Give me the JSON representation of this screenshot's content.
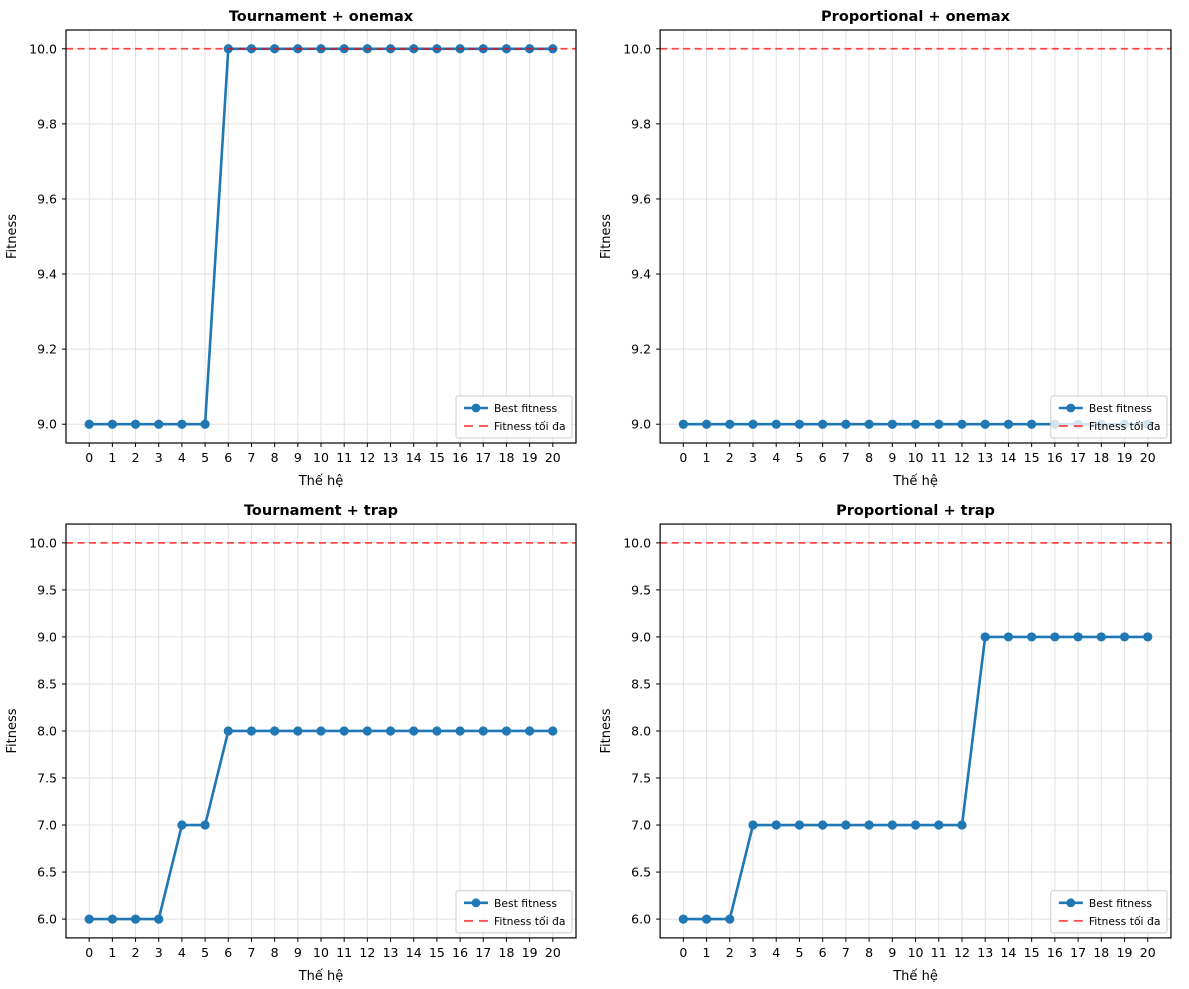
{
  "figure": {
    "background": "#ffffff"
  },
  "colors": {
    "best_fitness_line": "#1f77b4",
    "max_fitness_line_base": "#ff0000",
    "max_fitness_line_opacity": 0.7,
    "grid": "#e2e2e2",
    "spine": "#000000",
    "legend_border": "#cccccc",
    "text": "#000000"
  },
  "chart_data": [
    {
      "type": "line",
      "title": "Tournament + onemax",
      "xlabel": "Thế hệ",
      "ylabel": "Fitness",
      "x": [
        0,
        1,
        2,
        3,
        4,
        5,
        6,
        7,
        8,
        9,
        10,
        11,
        12,
        13,
        14,
        15,
        16,
        17,
        18,
        19,
        20
      ],
      "series": [
        {
          "name": "Best fitness",
          "values": [
            9,
            9,
            9,
            9,
            9,
            9,
            10,
            10,
            10,
            10,
            10,
            10,
            10,
            10,
            10,
            10,
            10,
            10,
            10,
            10,
            10
          ]
        }
      ],
      "max_line": {
        "label": "Fitness tối đa",
        "value": 10.0
      },
      "xlim": [
        -1,
        21
      ],
      "ylim": [
        8.95,
        10.05
      ],
      "xticks": [
        0,
        1,
        2,
        3,
        4,
        5,
        6,
        7,
        8,
        9,
        10,
        11,
        12,
        13,
        14,
        15,
        16,
        17,
        18,
        19,
        20
      ],
      "yticks": [
        9.0,
        9.2,
        9.4,
        9.6,
        9.8,
        10.0
      ],
      "grid": true,
      "legend_position": "lower right"
    },
    {
      "type": "line",
      "title": "Proportional + onemax",
      "xlabel": "Thế hệ",
      "ylabel": "Fitness",
      "x": [
        0,
        1,
        2,
        3,
        4,
        5,
        6,
        7,
        8,
        9,
        10,
        11,
        12,
        13,
        14,
        15,
        16,
        17,
        18,
        19,
        20
      ],
      "series": [
        {
          "name": "Best fitness",
          "values": [
            9,
            9,
            9,
            9,
            9,
            9,
            9,
            9,
            9,
            9,
            9,
            9,
            9,
            9,
            9,
            9,
            9,
            9,
            9,
            9,
            9
          ]
        }
      ],
      "max_line": {
        "label": "Fitness tối đa",
        "value": 10.0
      },
      "xlim": [
        -1,
        21
      ],
      "ylim": [
        8.95,
        10.05
      ],
      "xticks": [
        0,
        1,
        2,
        3,
        4,
        5,
        6,
        7,
        8,
        9,
        10,
        11,
        12,
        13,
        14,
        15,
        16,
        17,
        18,
        19,
        20
      ],
      "yticks": [
        9.0,
        9.2,
        9.4,
        9.6,
        9.8,
        10.0
      ],
      "grid": true,
      "legend_position": "lower right"
    },
    {
      "type": "line",
      "title": "Tournament + trap",
      "xlabel": "Thế hệ",
      "ylabel": "Fitness",
      "x": [
        0,
        1,
        2,
        3,
        4,
        5,
        6,
        7,
        8,
        9,
        10,
        11,
        12,
        13,
        14,
        15,
        16,
        17,
        18,
        19,
        20
      ],
      "series": [
        {
          "name": "Best fitness",
          "values": [
            6,
            6,
            6,
            6,
            7,
            7,
            8,
            8,
            8,
            8,
            8,
            8,
            8,
            8,
            8,
            8,
            8,
            8,
            8,
            8,
            8
          ]
        }
      ],
      "max_line": {
        "label": "Fitness tối đa",
        "value": 10.0
      },
      "xlim": [
        -1,
        21
      ],
      "ylim": [
        5.8,
        10.2
      ],
      "xticks": [
        0,
        1,
        2,
        3,
        4,
        5,
        6,
        7,
        8,
        9,
        10,
        11,
        12,
        13,
        14,
        15,
        16,
        17,
        18,
        19,
        20
      ],
      "yticks": [
        6.0,
        6.5,
        7.0,
        7.5,
        8.0,
        8.5,
        9.0,
        9.5,
        10.0
      ],
      "grid": true,
      "legend_position": "lower right"
    },
    {
      "type": "line",
      "title": "Proportional + trap",
      "xlabel": "Thế hệ",
      "ylabel": "Fitness",
      "x": [
        0,
        1,
        2,
        3,
        4,
        5,
        6,
        7,
        8,
        9,
        10,
        11,
        12,
        13,
        14,
        15,
        16,
        17,
        18,
        19,
        20
      ],
      "series": [
        {
          "name": "Best fitness",
          "values": [
            6,
            6,
            6,
            7,
            7,
            7,
            7,
            7,
            7,
            7,
            7,
            7,
            7,
            9,
            9,
            9,
            9,
            9,
            9,
            9,
            9
          ]
        }
      ],
      "max_line": {
        "label": "Fitness tối đa",
        "value": 10.0
      },
      "xlim": [
        -1,
        21
      ],
      "ylim": [
        5.8,
        10.2
      ],
      "xticks": [
        0,
        1,
        2,
        3,
        4,
        5,
        6,
        7,
        8,
        9,
        10,
        11,
        12,
        13,
        14,
        15,
        16,
        17,
        18,
        19,
        20
      ],
      "yticks": [
        6.0,
        6.5,
        7.0,
        7.5,
        8.0,
        8.5,
        9.0,
        9.5,
        10.0
      ],
      "grid": true,
      "legend_position": "lower right"
    }
  ]
}
